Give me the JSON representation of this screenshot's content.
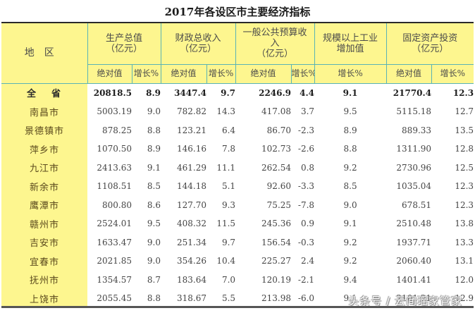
{
  "title": "2017年各设区市主要经济指标",
  "header": {
    "region": "地区",
    "groups": [
      {
        "line1": "生产总值",
        "line2": "（亿元）",
        "line3": ""
      },
      {
        "line1": "财政总收入",
        "line2": "（亿元）",
        "line3": ""
      },
      {
        "line1": "一般公共预算收",
        "line2": "入",
        "line3": "（亿元）"
      },
      {
        "line1": "规模以上工业",
        "line2": "增加值",
        "line3": ""
      },
      {
        "line1": "固定资产投资",
        "line2": "（亿元）",
        "line3": ""
      }
    ],
    "sub": {
      "absolute": "绝对值",
      "growth": "增长%"
    }
  },
  "rows": [
    {
      "region": "全省",
      "gdp": "20818.5",
      "gdp_g": "8.9",
      "fiscal": "3447.4",
      "fiscal_g": "9.7",
      "budget": "2246.9",
      "budget_g": "4.4",
      "industry_g": "9.1",
      "invest": "21770.4",
      "invest_g": "12.3"
    },
    {
      "region": "南昌市",
      "gdp": "5003.19",
      "gdp_g": "9.0",
      "fiscal": "782.82",
      "fiscal_g": "14.3",
      "budget": "417.08",
      "budget_g": "3.7",
      "industry_g": "9.5",
      "invest": "5115.18",
      "invest_g": "12.7"
    },
    {
      "region": "景德镇市",
      "gdp": "878.25",
      "gdp_g": "8.8",
      "fiscal": "123.21",
      "fiscal_g": "6.4",
      "budget": "86.70",
      "budget_g": "-2.3",
      "industry_g": "8.9",
      "invest": "889.33",
      "invest_g": "13.5"
    },
    {
      "region": "萍乡市",
      "gdp": "1070.50",
      "gdp_g": "8.9",
      "fiscal": "146.16",
      "fiscal_g": "7.8",
      "budget": "102.73",
      "budget_g": "-2.6",
      "industry_g": "8.8",
      "invest": "1311.90",
      "invest_g": "12.8"
    },
    {
      "region": "九江市",
      "gdp": "2413.63",
      "gdp_g": "9.1",
      "fiscal": "461.29",
      "fiscal_g": "11.1",
      "budget": "262.54",
      "budget_g": "0.8",
      "industry_g": "9.2",
      "invest": "2730.96",
      "invest_g": "12.5"
    },
    {
      "region": "新余市",
      "gdp": "1108.51",
      "gdp_g": "8.5",
      "fiscal": "144.18",
      "fiscal_g": "5.1",
      "budget": "92.60",
      "budget_g": "-3.3",
      "industry_g": "8.5",
      "invest": "1035.04",
      "invest_g": "12.3"
    },
    {
      "region": "鹰潭市",
      "gdp": "800.80",
      "gdp_g": "8.6",
      "fiscal": "127.70",
      "fiscal_g": "9.3",
      "budget": "75.25",
      "budget_g": "-7.8",
      "industry_g": "9.0",
      "invest": "678.51",
      "invest_g": "12.3"
    },
    {
      "region": "赣州市",
      "gdp": "2524.01",
      "gdp_g": "9.5",
      "fiscal": "408.32",
      "fiscal_g": "11.5",
      "budget": "245.36",
      "budget_g": "0.9",
      "industry_g": "9.1",
      "invest": "2510.48",
      "invest_g": "13.8"
    },
    {
      "region": "吉安市",
      "gdp": "1633.47",
      "gdp_g": "9.0",
      "fiscal": "251.34",
      "fiscal_g": "9.7",
      "budget": "156.54",
      "budget_g": "-0.3",
      "industry_g": "9.2",
      "invest": "1937.71",
      "invest_g": "13.3"
    },
    {
      "region": "宜春市",
      "gdp": "2021.85",
      "gdp_g": "9.0",
      "fiscal": "354.26",
      "fiscal_g": "10.4",
      "budget": "225.27",
      "budget_g": "2.4",
      "industry_g": "9.2",
      "invest": "2060.40",
      "invest_g": "13.1"
    },
    {
      "region": "抚州市",
      "gdp": "1354.57",
      "gdp_g": "8.7",
      "fiscal": "183.64",
      "fiscal_g": "7.0",
      "budget": "120.19",
      "budget_g": "-2.1",
      "industry_g": "9.4",
      "invest": "1401.41",
      "invest_g": "12.0"
    },
    {
      "region": "上饶市",
      "gdp": "2055.45",
      "gdp_g": "8.8",
      "fiscal": "318.67",
      "fiscal_g": "5.5",
      "budget": "213.98",
      "budget_g": "-6.0",
      "industry_g": "9.1",
      "invest": "2101.21",
      "invest_g": "12.9"
    }
  ],
  "watermark": "头条号 / 云间瑶家管家",
  "colors": {
    "header_bg": "#fdf68f",
    "grid_line": "#59b3b5",
    "rule": "#2a2a2a"
  }
}
